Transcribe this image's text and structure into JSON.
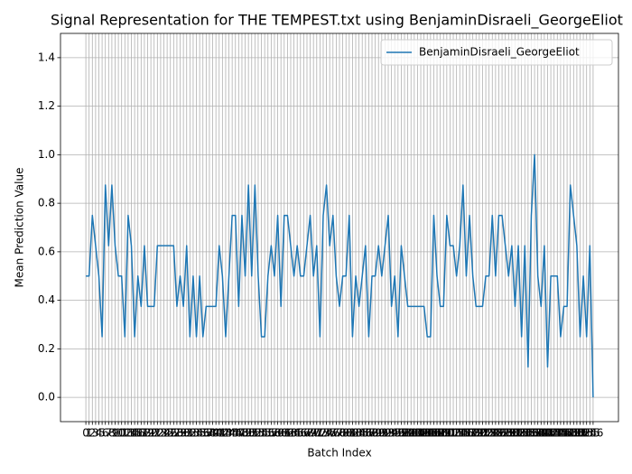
{
  "chart_data": {
    "type": "line",
    "title": "Signal Representation for THE TEMPEST.txt using BenjaminDisraeli_GeorgeEliot",
    "x_label": "Batch Index",
    "y_label": "Mean Prediction Value",
    "x": [
      0,
      1,
      2,
      3,
      4,
      5,
      6,
      7,
      8,
      9,
      10,
      11,
      12,
      13,
      14,
      15,
      16,
      17,
      18,
      19,
      20,
      21,
      22,
      23,
      24,
      25,
      26,
      27,
      28,
      29,
      30,
      31,
      32,
      33,
      34,
      35,
      36,
      37,
      38,
      39,
      40,
      41,
      42,
      43,
      44,
      45,
      46,
      47,
      48,
      49,
      50,
      51,
      52,
      53,
      54,
      55,
      56,
      57,
      58,
      59,
      60,
      61,
      62,
      63,
      64,
      65,
      66,
      67,
      68,
      69,
      70,
      71,
      72,
      73,
      74,
      75,
      76,
      77,
      78,
      79,
      80,
      81,
      82,
      83,
      84,
      85,
      86,
      87,
      88,
      89,
      90,
      91,
      92,
      93,
      94,
      95,
      96,
      97,
      98,
      99,
      100,
      101,
      102,
      103,
      104,
      105,
      106,
      107,
      108,
      109,
      110,
      111,
      112,
      113,
      114,
      115,
      116,
      117,
      118,
      119,
      120,
      121,
      122,
      123,
      124,
      125,
      126,
      127,
      128,
      129,
      130,
      131,
      132,
      133,
      134,
      135,
      136,
      137,
      138,
      139,
      140,
      141,
      142,
      143,
      144,
      145,
      146,
      147,
      148,
      149,
      150,
      151,
      152,
      153,
      154,
      155,
      156
    ],
    "series": [
      {
        "name": "BenjaminDisraeli_GeorgeEliot",
        "color": "#1f77b4",
        "values": [
          0.5,
          0.5,
          0.75,
          0.625,
          0.5,
          0.25,
          0.875,
          0.625,
          0.875,
          0.625,
          0.5,
          0.5,
          0.25,
          0.75,
          0.625,
          0.25,
          0.5,
          0.375,
          0.625,
          0.375,
          0.375,
          0.375,
          0.625,
          0.625,
          0.625,
          0.625,
          0.625,
          0.625,
          0.375,
          0.5,
          0.375,
          0.625,
          0.25,
          0.5,
          0.25,
          0.5,
          0.25,
          0.375,
          0.375,
          0.375,
          0.375,
          0.625,
          0.5,
          0.25,
          0.5,
          0.75,
          0.75,
          0.375,
          0.75,
          0.5,
          0.875,
          0.5,
          0.875,
          0.5,
          0.25,
          0.25,
          0.5,
          0.625,
          0.5,
          0.75,
          0.375,
          0.75,
          0.75,
          0.625,
          0.5,
          0.625,
          0.5,
          0.5,
          0.625,
          0.75,
          0.5,
          0.625,
          0.25,
          0.75,
          0.875,
          0.625,
          0.75,
          0.5,
          0.375,
          0.5,
          0.5,
          0.75,
          0.25,
          0.5,
          0.375,
          0.5,
          0.625,
          0.25,
          0.5,
          0.5,
          0.625,
          0.5,
          0.625,
          0.75,
          0.375,
          0.5,
          0.25,
          0.625,
          0.5,
          0.375,
          0.375,
          0.375,
          0.375,
          0.375,
          0.375,
          0.25,
          0.25,
          0.75,
          0.5,
          0.375,
          0.375,
          0.75,
          0.625,
          0.625,
          0.5,
          0.625,
          0.875,
          0.5,
          0.75,
          0.5,
          0.375,
          0.375,
          0.375,
          0.5,
          0.5,
          0.75,
          0.5,
          0.75,
          0.75,
          0.625,
          0.5,
          0.625,
          0.375,
          0.625,
          0.25,
          0.625,
          0.125,
          0.75,
          1.0,
          0.5,
          0.375,
          0.625,
          0.125,
          0.5,
          0.5,
          0.5,
          0.25,
          0.375,
          0.375,
          0.875,
          0.75,
          0.625,
          0.25,
          0.5,
          0.25,
          0.625,
          0.0
        ]
      }
    ],
    "xlim": [
      -7.8,
      163.8
    ],
    "xticks": [
      0,
      1,
      2,
      3,
      4,
      5,
      6,
      7,
      8,
      9,
      10,
      11,
      12,
      13,
      14,
      15,
      16,
      17,
      18,
      19,
      20,
      21,
      22,
      23,
      24,
      25,
      26,
      27,
      28,
      29,
      30,
      31,
      32,
      33,
      34,
      35,
      36,
      37,
      38,
      39,
      40,
      41,
      42,
      43,
      44,
      45,
      46,
      47,
      48,
      49,
      50,
      51,
      52,
      53,
      54,
      55,
      56,
      57,
      58,
      59,
      60,
      61,
      62,
      63,
      64,
      65,
      66,
      67,
      68,
      69,
      70,
      71,
      72,
      73,
      74,
      75,
      76,
      77,
      78,
      79,
      80,
      81,
      82,
      83,
      84,
      85,
      86,
      87,
      88,
      89,
      90,
      91,
      92,
      93,
      94,
      95,
      96,
      97,
      98,
      99,
      100,
      101,
      102,
      103,
      104,
      105,
      106,
      107,
      108,
      109,
      110,
      111,
      112,
      113,
      114,
      115,
      116,
      117,
      118,
      119,
      120,
      121,
      122,
      123,
      124,
      125,
      126,
      127,
      128,
      129,
      130,
      131,
      132,
      133,
      134,
      135,
      136,
      137,
      138,
      139,
      140,
      141,
      142,
      143,
      144,
      145,
      146,
      147,
      148,
      149,
      150,
      151,
      152,
      153,
      154,
      155,
      156
    ],
    "ylim": [
      -0.1,
      1.5
    ],
    "yticks": [
      {
        "value": 0,
        "label": "0.0"
      },
      {
        "value": 0.2,
        "label": "0.2"
      },
      {
        "value": 0.4,
        "label": "0.4"
      },
      {
        "value": 0.6,
        "label": "0.6"
      },
      {
        "value": 0.8,
        "label": "0.8"
      },
      {
        "value": 1,
        "label": "1.0"
      },
      {
        "value": 1.2,
        "label": "1.2"
      },
      {
        "value": 1.4,
        "label": "1.4"
      }
    ],
    "grid": true,
    "legend": "upper right"
  }
}
